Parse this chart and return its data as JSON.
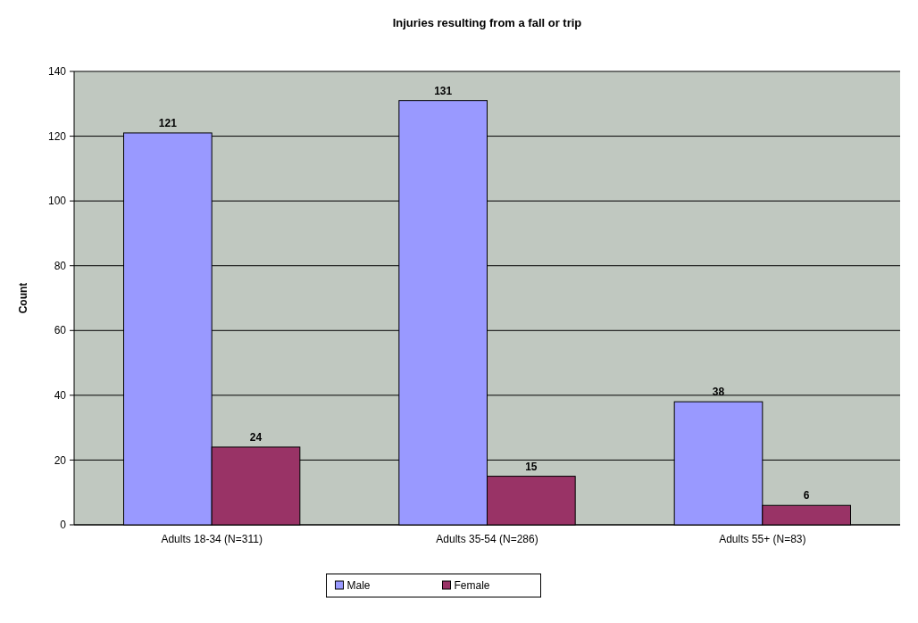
{
  "chart_data": {
    "type": "bar",
    "title": "Injuries resulting from a fall or trip",
    "ylabel": "Count",
    "categories": [
      "Adults 18-34 (N=311)",
      "Adults 35-54 (N=286)",
      "Adults 55+ (N=83)"
    ],
    "series": [
      {
        "name": "Male",
        "color": "#9999ff",
        "values": [
          121,
          131,
          38
        ]
      },
      {
        "name": "Female",
        "color": "#993366",
        "values": [
          24,
          15,
          6
        ]
      }
    ],
    "ylim": [
      0,
      140
    ],
    "yticks": [
      0,
      20,
      40,
      60,
      80,
      100,
      120,
      140
    ],
    "grid": "y",
    "legend": "bottom",
    "data_labels": true
  }
}
